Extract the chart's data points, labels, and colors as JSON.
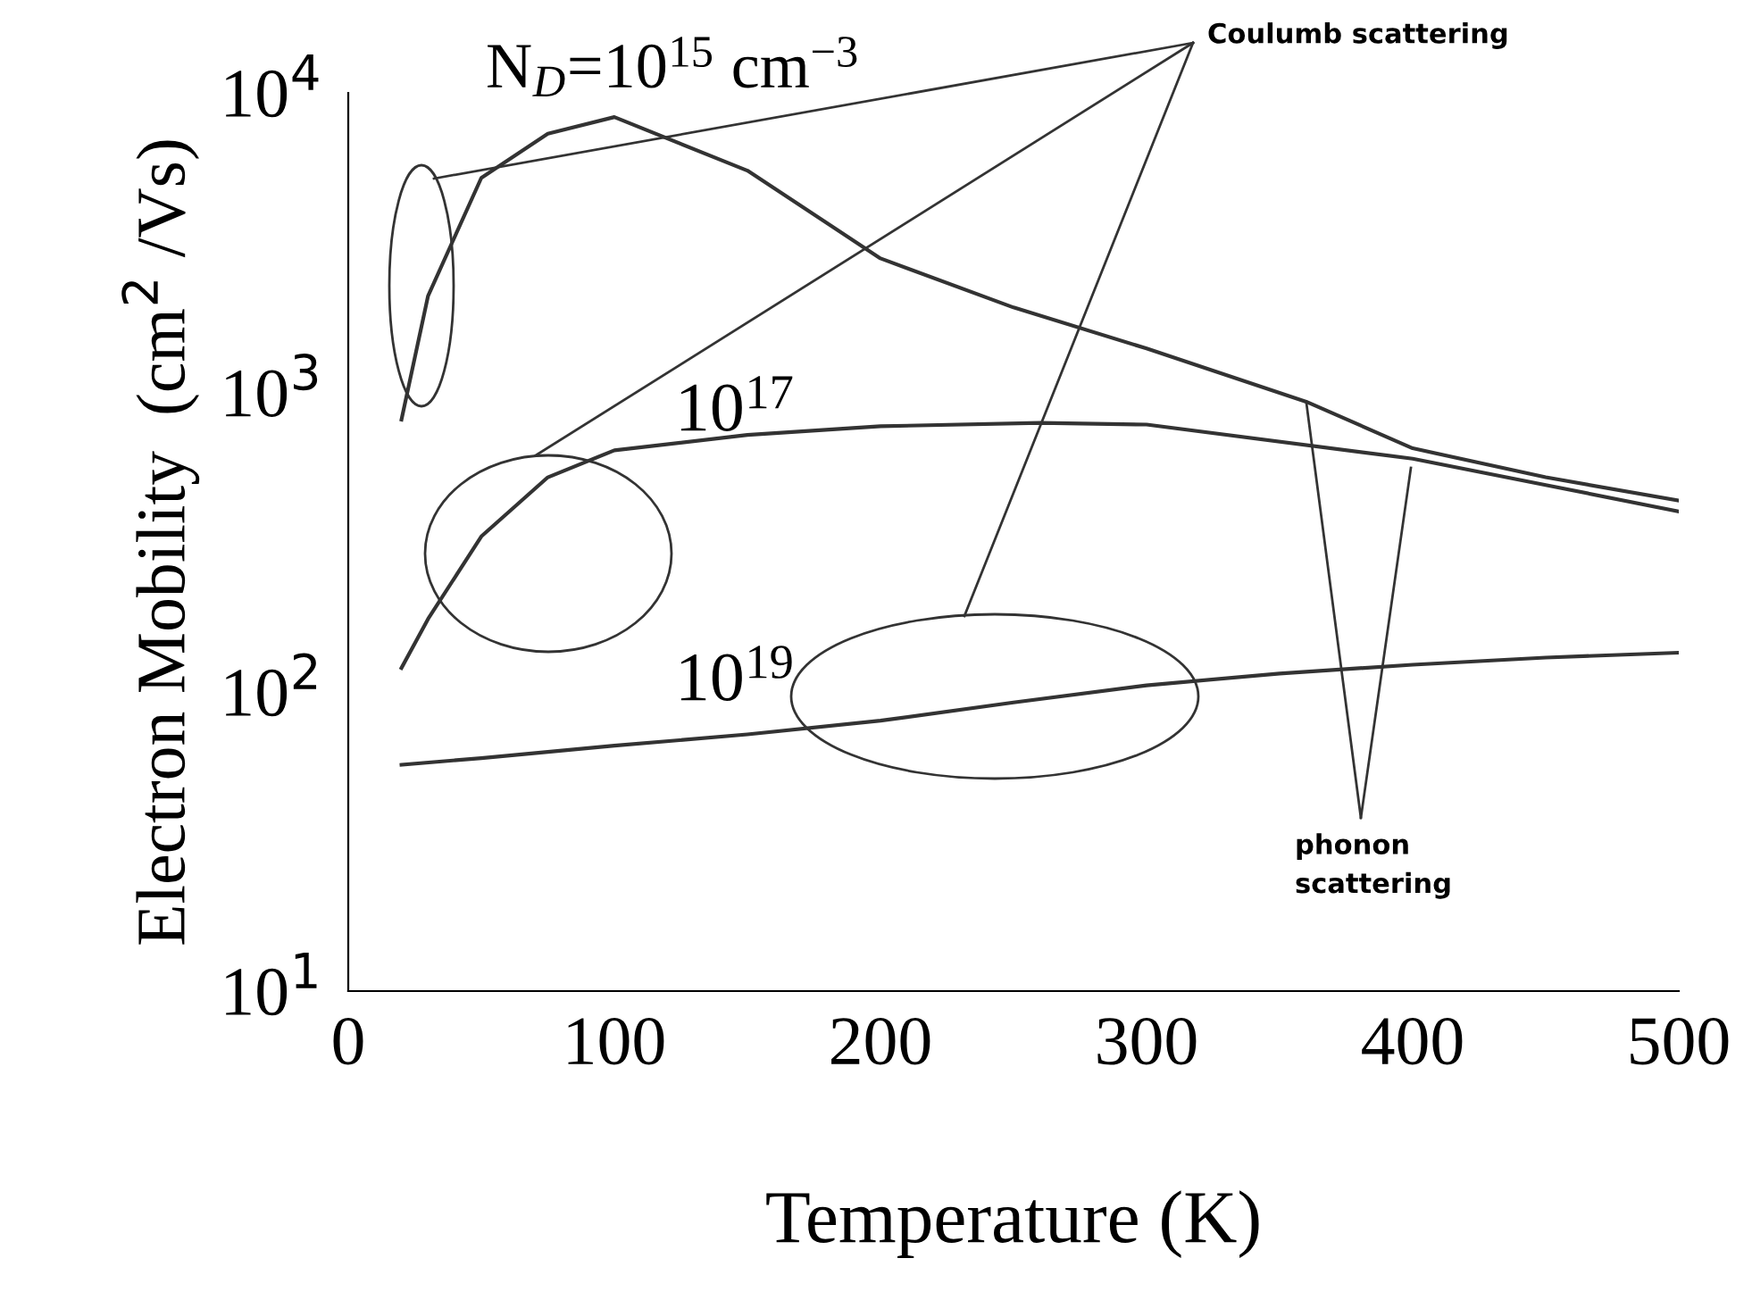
{
  "chart_data": {
    "type": "line",
    "xlabel": "Temperature (K)",
    "ylabel": "Electron Mobility  (cm$^{2}$ /Vs)",
    "log": "y",
    "xlim": [
      0,
      500
    ],
    "ylim": [
      10,
      10000
    ],
    "xticks": [
      0,
      100,
      200,
      300,
      400,
      500
    ],
    "yticks": [
      {
        "value": 10,
        "label": "10$^{1}$"
      },
      {
        "value": 100,
        "label": "10$^{2}$"
      },
      {
        "value": 1000,
        "label": "10$^{3}$"
      },
      {
        "value": 10000,
        "label": "10$^{4}$"
      }
    ],
    "grid": false,
    "legend": false,
    "marker": "none",
    "line_style": "solid",
    "series": [
      {
        "name": "N$_{D}$=10$^{15}$ cm$^{−3}$",
        "color": "#333333",
        "x": [
          20,
          30,
          50,
          75,
          100,
          150,
          200,
          250,
          300,
          360,
          400,
          450,
          500
        ],
        "values": [
          810,
          2100,
          5200,
          7300,
          8300,
          5500,
          2800,
          1920,
          1400,
          930,
          650,
          520,
          435
        ]
      },
      {
        "name": "10$^{17}$",
        "color": "#333333",
        "x": [
          20,
          30,
          50,
          75,
          100,
          150,
          200,
          260,
          300,
          400,
          450,
          500
        ],
        "values": [
          120,
          175,
          330,
          520,
          640,
          720,
          770,
          790,
          780,
          600,
          490,
          400
        ]
      },
      {
        "name": "10$^{19}$",
        "color": "#333333",
        "x": [
          20,
          50,
          100,
          150,
          200,
          250,
          300,
          350,
          400,
          450,
          500
        ],
        "values": [
          57,
          60,
          66,
          72,
          80,
          92,
          105,
          115,
          123,
          130,
          135
        ]
      }
    ],
    "annotations": [
      "Coulumb scattering",
      {
        "text": "phonon\nscattering",
        "x": 360,
        "y": 930
      }
    ]
  }
}
